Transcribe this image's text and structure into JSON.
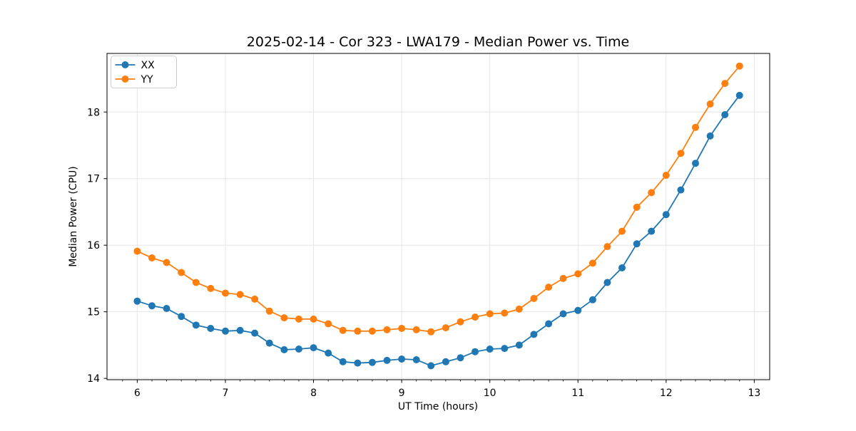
{
  "chart_data": {
    "type": "line",
    "title": "2025-02-14 - Cor 323 - LWA179 - Median Power vs. Time",
    "xlabel": "UT Time (hours)",
    "ylabel": "Median Power (CPU)",
    "xlim": [
      5.657,
      13.175
    ],
    "ylim": [
      13.98,
      18.88
    ],
    "xticks": [
      6,
      7,
      8,
      9,
      10,
      11,
      12,
      13
    ],
    "yticks": [
      14,
      15,
      16,
      17,
      18
    ],
    "minor_x_step_hours": 0.1667,
    "grid": true,
    "grid_color": "#e6e6e6",
    "legend": {
      "position": "upper left",
      "entries": [
        "XX",
        "YY"
      ]
    },
    "x": [
      6,
      6.167,
      6.333,
      6.5,
      6.667,
      6.833,
      7,
      7.167,
      7.333,
      7.5,
      7.667,
      7.833,
      8,
      8.167,
      8.333,
      8.5,
      8.667,
      8.833,
      9,
      9.167,
      9.333,
      9.5,
      9.667,
      9.833,
      10,
      10.167,
      10.333,
      10.5,
      10.667,
      10.833,
      11,
      11.167,
      11.333,
      11.5,
      11.667,
      11.833,
      12,
      12.167,
      12.333,
      12.5,
      12.667,
      12.833
    ],
    "series": [
      {
        "name": "XX",
        "color": "#1f77b4",
        "values": [
          15.16,
          15.09,
          15.05,
          14.93,
          14.8,
          14.75,
          14.71,
          14.72,
          14.68,
          14.53,
          14.43,
          14.44,
          14.46,
          14.38,
          14.25,
          14.23,
          14.24,
          14.27,
          14.29,
          14.28,
          14.19,
          14.25,
          14.31,
          14.4,
          14.44,
          14.45,
          14.5,
          14.66,
          14.82,
          14.97,
          15.02,
          15.18,
          15.44,
          15.66,
          16.02,
          16.21,
          16.46,
          16.83,
          17.23,
          17.64,
          17.96,
          18.25
        ]
      },
      {
        "name": "YY",
        "color": "#ff7f0e",
        "values": [
          15.91,
          15.81,
          15.74,
          15.59,
          15.44,
          15.35,
          15.28,
          15.26,
          15.19,
          15.01,
          14.91,
          14.89,
          14.89,
          14.82,
          14.72,
          14.71,
          14.71,
          14.73,
          14.75,
          14.73,
          14.7,
          14.76,
          14.85,
          14.92,
          14.97,
          14.98,
          15.04,
          15.2,
          15.37,
          15.5,
          15.57,
          15.73,
          15.98,
          16.21,
          16.57,
          16.79,
          17.05,
          17.38,
          17.77,
          18.12,
          18.43,
          18.69
        ]
      }
    ]
  }
}
